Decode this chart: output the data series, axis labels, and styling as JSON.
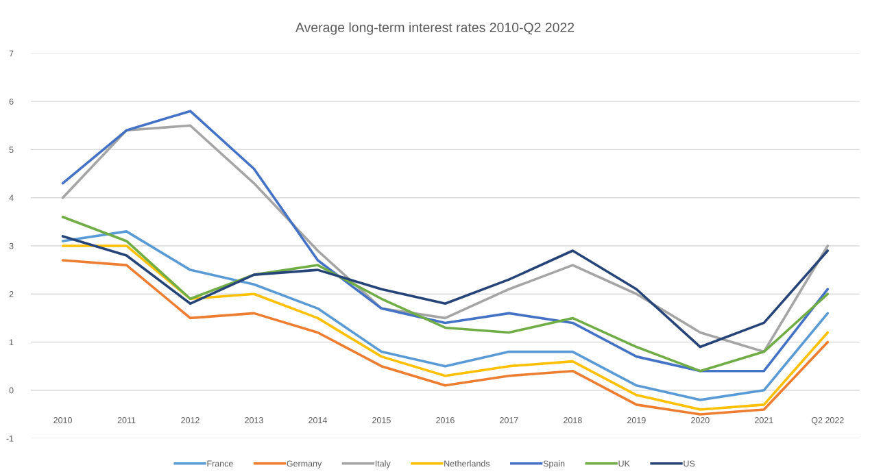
{
  "chart_data": {
    "type": "line",
    "title": "Average long-term interest rates 2010-Q2 2022",
    "categories": [
      "2010",
      "2011",
      "2012",
      "2013",
      "2014",
      "2015",
      "2016",
      "2017",
      "2018",
      "2019",
      "2020",
      "2021",
      "Q2 2022"
    ],
    "series": [
      {
        "name": "France",
        "color": "#5b9bd5",
        "values": [
          3.1,
          3.3,
          2.5,
          2.2,
          1.7,
          0.8,
          0.5,
          0.8,
          0.8,
          0.1,
          -0.2,
          0.0,
          1.6
        ]
      },
      {
        "name": "Germany",
        "color": "#ed7d31",
        "values": [
          2.7,
          2.6,
          1.5,
          1.6,
          1.2,
          0.5,
          0.1,
          0.3,
          0.4,
          -0.3,
          -0.5,
          -0.4,
          1.0
        ]
      },
      {
        "name": "Italy",
        "color": "#a5a5a5",
        "values": [
          4.0,
          5.4,
          5.5,
          4.3,
          2.9,
          1.7,
          1.5,
          2.1,
          2.6,
          2.0,
          1.2,
          0.8,
          3.0
        ]
      },
      {
        "name": "Netherlands",
        "color": "#ffc000",
        "values": [
          3.0,
          3.0,
          1.9,
          2.0,
          1.5,
          0.7,
          0.3,
          0.5,
          0.6,
          -0.1,
          -0.4,
          -0.3,
          1.2
        ]
      },
      {
        "name": "Spain",
        "color": "#4472c4",
        "values": [
          4.3,
          5.4,
          5.8,
          4.6,
          2.7,
          1.7,
          1.4,
          1.6,
          1.4,
          0.7,
          0.4,
          0.4,
          2.1
        ]
      },
      {
        "name": "UK",
        "color": "#70ad47",
        "values": [
          3.6,
          3.1,
          1.9,
          2.4,
          2.6,
          1.9,
          1.3,
          1.2,
          1.5,
          0.9,
          0.4,
          0.8,
          2.0
        ]
      },
      {
        "name": "US",
        "color": "#264478",
        "values": [
          3.2,
          2.8,
          1.8,
          2.4,
          2.5,
          2.1,
          1.8,
          2.3,
          2.9,
          2.1,
          0.9,
          1.4,
          2.9
        ]
      }
    ],
    "ylim": [
      -1,
      7
    ],
    "yticks": [
      -1,
      0,
      1,
      2,
      3,
      4,
      5,
      6,
      7
    ],
    "grid": "y",
    "legend": "bottom",
    "line_style": "solid"
  }
}
